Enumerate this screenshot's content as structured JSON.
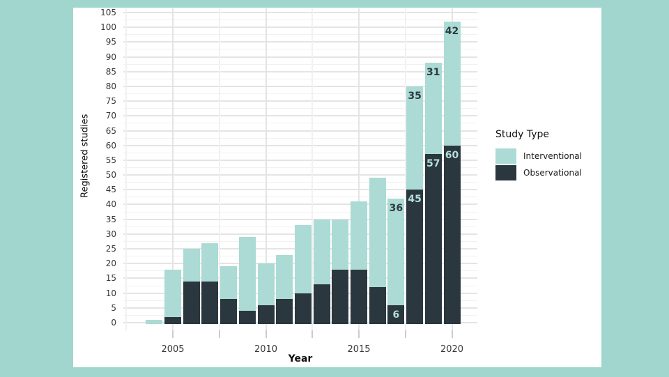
{
  "page": {
    "background_color": "#a1d6ce",
    "figure_background_color": "#ffffff"
  },
  "chart_data": {
    "type": "bar",
    "stacked": true,
    "title": "",
    "xlabel": "Year",
    "ylabel": "Registered studies",
    "ylim": [
      0,
      105
    ],
    "y_tick_step": 5,
    "y_minor_step": 2.5,
    "x_major_ticks": [
      2005,
      2010,
      2015,
      2020
    ],
    "x_tick_step": 2.5,
    "grid": true,
    "legend_position": "right",
    "categories": [
      2004,
      2005,
      2006,
      2007,
      2008,
      2009,
      2010,
      2011,
      2012,
      2013,
      2014,
      2015,
      2016,
      2017,
      2018,
      2019,
      2020
    ],
    "series": [
      {
        "name": "Observational",
        "color": "#2b373e",
        "values": [
          0,
          2,
          14,
          14,
          8,
          4,
          6,
          8,
          10,
          13,
          18,
          18,
          12,
          6,
          45,
          57,
          60
        ]
      },
      {
        "name": "Interventional",
        "color": "#abdbd4",
        "values": [
          1,
          16,
          11,
          13,
          11,
          25,
          14,
          15,
          23,
          22,
          17,
          23,
          37,
          36,
          35,
          31,
          42
        ]
      }
    ],
    "bar_value_labels": [
      {
        "year": 2017,
        "interventional": "36",
        "observational": "6"
      },
      {
        "year": 2018,
        "interventional": "35",
        "observational": "45"
      },
      {
        "year": 2019,
        "interventional": "31",
        "observational": "57"
      },
      {
        "year": 2020,
        "interventional": "42",
        "observational": "60"
      }
    ],
    "legend": {
      "title": "Study Type",
      "entries": [
        {
          "label": "Interventional",
          "color": "#abdbd4"
        },
        {
          "label": "Observational",
          "color": "#2b373e"
        }
      ]
    },
    "colors": {
      "grid_major": "#e4e4e4",
      "grid_minor": "#f1f1f1",
      "tick_mark": "#cccccc",
      "axis_text": "#383838",
      "label_on_light": "#2e3b42",
      "label_on_dark": "#b2e0d9"
    }
  }
}
